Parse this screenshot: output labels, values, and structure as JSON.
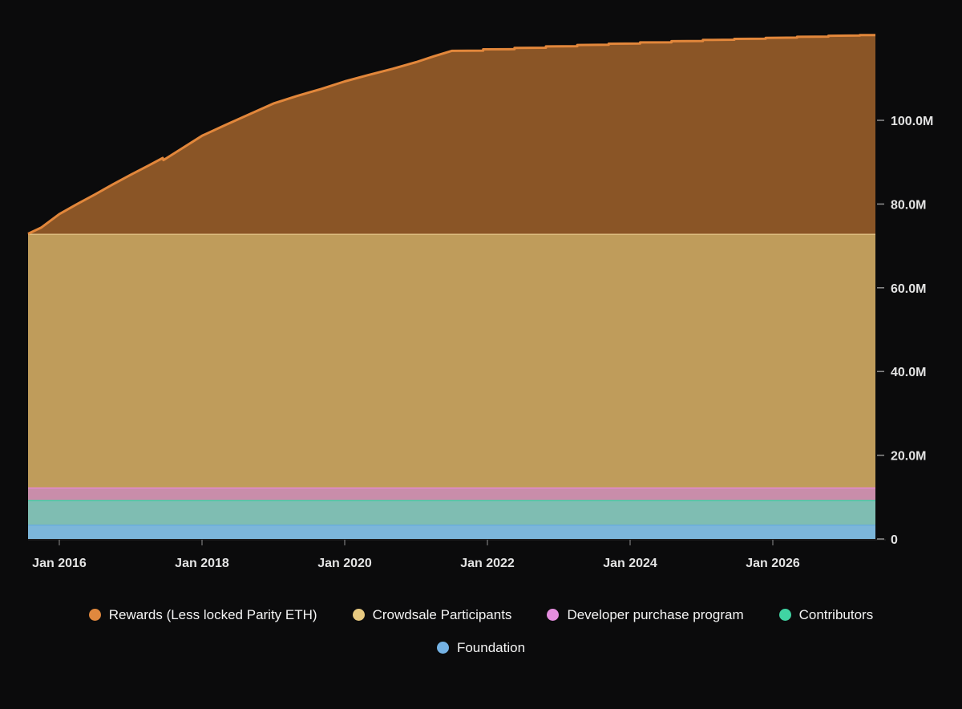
{
  "page": {
    "background": "#0b0b0c"
  },
  "chart_data": {
    "type": "area",
    "stacked": true,
    "title": "",
    "xlabel": "",
    "ylabel": "",
    "x_unit": "decimal_year",
    "y_unit": "millions",
    "x_domain": [
      2015.562,
      2027.438
    ],
    "y_domain": [
      0,
      128.74
    ],
    "grid": false,
    "legend_position": "bottom",
    "x_ticks": [
      {
        "label": "Jan 2016",
        "year": 2016
      },
      {
        "label": "Jan 2018",
        "year": 2018
      },
      {
        "label": "Jan 2020",
        "year": 2020
      },
      {
        "label": "Jan 2022",
        "year": 2022
      },
      {
        "label": "Jan 2024",
        "year": 2024
      },
      {
        "label": "Jan 2026",
        "year": 2026
      }
    ],
    "y_ticks": [
      {
        "label": "0",
        "value": 0
      },
      {
        "label": "20.0M",
        "value": 20
      },
      {
        "label": "40.0M",
        "value": 40
      },
      {
        "label": "60.0M",
        "value": 60
      },
      {
        "label": "80.0M",
        "value": 80
      },
      {
        "label": "100.0M",
        "value": 100
      }
    ],
    "series": [
      {
        "name": "Foundation",
        "type": "constant",
        "value": 3.4,
        "dot_color": "#74b2e4",
        "stroke": "#66a9e0",
        "fill": "#7cb6da",
        "stroke_width": 2.5
      },
      {
        "name": "Contributors",
        "type": "constant",
        "value": 5.9,
        "dot_color": "#40d4a3",
        "stroke": "#2ed8a3",
        "fill": "#7fbdb2",
        "stroke_width": 2.5
      },
      {
        "name": "Developer purchase program",
        "type": "constant",
        "value": 3.0,
        "dot_color": "#e48ede",
        "stroke": "#ea87dd",
        "fill": "#c98daa",
        "stroke_width": 2.5
      },
      {
        "name": "Crowdsale Participants",
        "type": "constant",
        "value": 60.6,
        "dot_color": "#e7c980",
        "stroke": "#e5c88b",
        "fill": "#bf9c5b",
        "stroke_width": 2.5
      },
      {
        "name": "Rewards (Less locked Parity ETH)",
        "type": "points",
        "points": [
          [
            2015.562,
            0.0
          ],
          [
            2015.75,
            1.5
          ],
          [
            2016.0,
            4.7
          ],
          [
            2016.25,
            7.1
          ],
          [
            2016.5,
            9.4
          ],
          [
            2016.75,
            11.8
          ],
          [
            2017.0,
            14.1
          ],
          [
            2017.25,
            16.3
          ],
          [
            2017.45,
            18.1
          ],
          [
            2017.46,
            17.6
          ],
          [
            2017.75,
            20.7
          ],
          [
            2018.0,
            23.4
          ],
          [
            2018.33,
            26.0
          ],
          [
            2018.67,
            28.6
          ],
          [
            2019.0,
            31.1
          ],
          [
            2019.33,
            32.9
          ],
          [
            2019.67,
            34.6
          ],
          [
            2020.0,
            36.4
          ],
          [
            2020.33,
            37.9
          ],
          [
            2020.67,
            39.4
          ],
          [
            2021.0,
            41.0
          ],
          [
            2021.25,
            42.4
          ],
          [
            2021.5,
            43.7
          ],
          [
            2021.94,
            43.75
          ],
          [
            2021.94,
            44.05
          ],
          [
            2022.38,
            44.1
          ],
          [
            2022.38,
            44.4
          ],
          [
            2022.82,
            44.45
          ],
          [
            2022.82,
            44.75
          ],
          [
            2023.26,
            44.8
          ],
          [
            2023.26,
            45.1
          ],
          [
            2023.7,
            45.15
          ],
          [
            2023.7,
            45.4
          ],
          [
            2024.14,
            45.45
          ],
          [
            2024.14,
            45.7
          ],
          [
            2024.58,
            45.75
          ],
          [
            2024.58,
            46.0
          ],
          [
            2025.02,
            46.05
          ],
          [
            2025.02,
            46.3
          ],
          [
            2025.46,
            46.35
          ],
          [
            2025.46,
            46.55
          ],
          [
            2025.9,
            46.6
          ],
          [
            2025.9,
            46.8
          ],
          [
            2026.34,
            46.85
          ],
          [
            2026.34,
            47.05
          ],
          [
            2026.78,
            47.1
          ],
          [
            2026.78,
            47.3
          ],
          [
            2027.22,
            47.35
          ],
          [
            2027.22,
            47.45
          ],
          [
            2027.438,
            47.45
          ]
        ],
        "dot_color": "#e0883e",
        "stroke": "#e2873b",
        "fill": "#8a5526",
        "stroke_width": 3
      }
    ],
    "legend_order": [
      "Rewards (Less locked Parity ETH)",
      "Crowdsale Participants",
      "Developer purchase program",
      "Contributors",
      "Foundation"
    ],
    "axis": {
      "tick_color": "#8f8f8f",
      "axis_line_color": "#2c2c2c",
      "label_color": "#e3e3e3"
    }
  }
}
